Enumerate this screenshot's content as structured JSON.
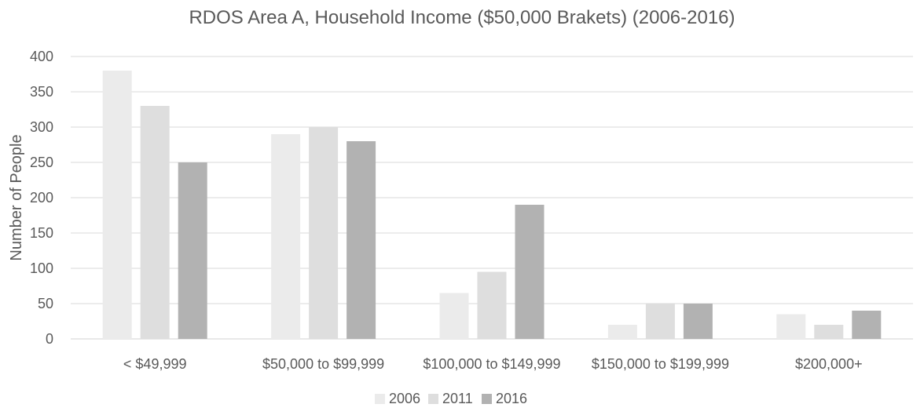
{
  "chart_data": {
    "type": "bar",
    "title": "RDOS Area A, Household Income ($50,000 Brakets) (2006-2016)",
    "xlabel": "",
    "ylabel": "Number of People",
    "ylim": [
      0,
      400
    ],
    "yticks": [
      0,
      50,
      100,
      150,
      200,
      250,
      300,
      350,
      400
    ],
    "categories": [
      "< $49,999",
      "$50,000 to $99,999",
      "$100,000 to $149,999",
      "$150,000 to $199,999",
      "$200,000+"
    ],
    "series": [
      {
        "name": "2006",
        "color": "#ebebeb",
        "values": [
          380,
          290,
          65,
          20,
          35
        ]
      },
      {
        "name": "2011",
        "color": "#dedede",
        "values": [
          330,
          300,
          95,
          50,
          20
        ]
      },
      {
        "name": "2016",
        "color": "#b2b2b2",
        "values": [
          250,
          280,
          190,
          50,
          40
        ]
      }
    ],
    "grid": true,
    "legend_position": "bottom"
  }
}
